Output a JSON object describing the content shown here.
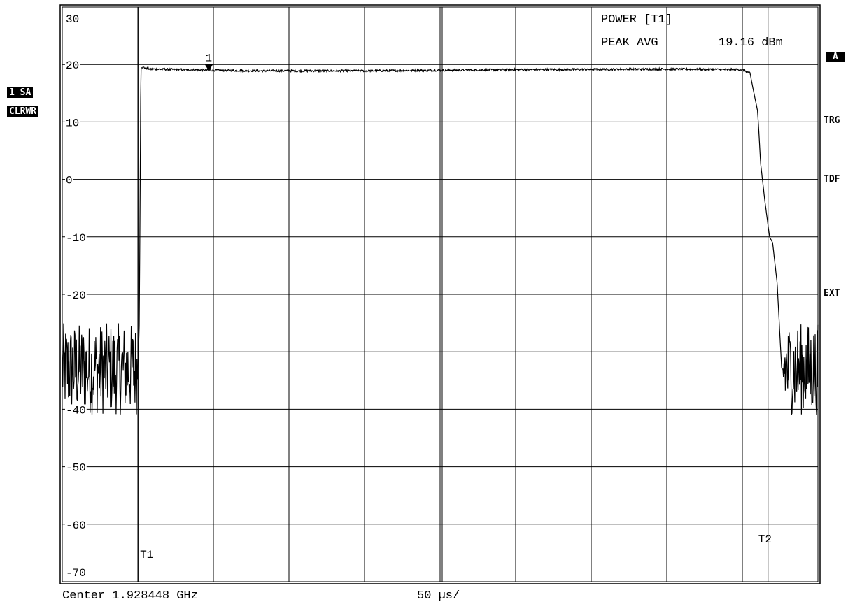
{
  "left_tags": {
    "trace": "1 SA",
    "mode": "CLRWR"
  },
  "right_tags": {
    "a": "A",
    "trg": "TRG",
    "tdf": "TDF",
    "ext": "EXT"
  },
  "readout": {
    "line1": "POWER [T1]",
    "line2_label": "PEAK AVG",
    "line2_value": "19.16 dBm"
  },
  "bottom": {
    "center": "Center 1.928448 GHz",
    "sweep": "50 µs/"
  },
  "colors": {
    "background": "#ffffff",
    "ink": "#000000"
  },
  "chart_data": {
    "type": "line",
    "title": "",
    "xlabel": "",
    "ylabel": "",
    "x_unit": "µs",
    "x_range": [
      0,
      500
    ],
    "x_divisions": 10,
    "ylim": [
      -70,
      30
    ],
    "y_ticks": [
      30,
      20,
      10,
      0,
      -10,
      -20,
      -30,
      -40,
      -50,
      -60,
      -70
    ],
    "y_tick_labels": [
      "30",
      "20",
      "10",
      "0",
      "-10",
      "-20",
      "",
      "-40",
      "-50",
      "-60",
      "-70"
    ],
    "grid": true,
    "series": [
      {
        "x": [
          0,
          45,
          50,
          51,
          52,
          58,
          80,
          100,
          130,
          200,
          300,
          400,
          450,
          455,
          460,
          461,
          462,
          465,
          468,
          470,
          473,
          475,
          476,
          477,
          480,
          500
        ],
        "y": [
          -33,
          -33,
          -33,
          -25,
          19.6,
          19.2,
          19.1,
          19.0,
          18.9,
          18.9,
          19.1,
          19.2,
          19.1,
          18.5,
          12,
          8,
          3,
          -4,
          -10,
          -11,
          -18,
          -28,
          -33,
          -33,
          -33,
          -33
        ]
      }
    ],
    "noise_floor": {
      "before_x": [
        0,
        50
      ],
      "after_x": [
        477,
        500
      ],
      "level": -33,
      "band": 8
    },
    "markers": [
      {
        "label": "1",
        "x": 97,
        "y": 19.1
      }
    ],
    "time_lines": [
      {
        "label": "T1",
        "x": 50.5
      },
      {
        "label": "T2",
        "x": 467
      }
    ]
  }
}
